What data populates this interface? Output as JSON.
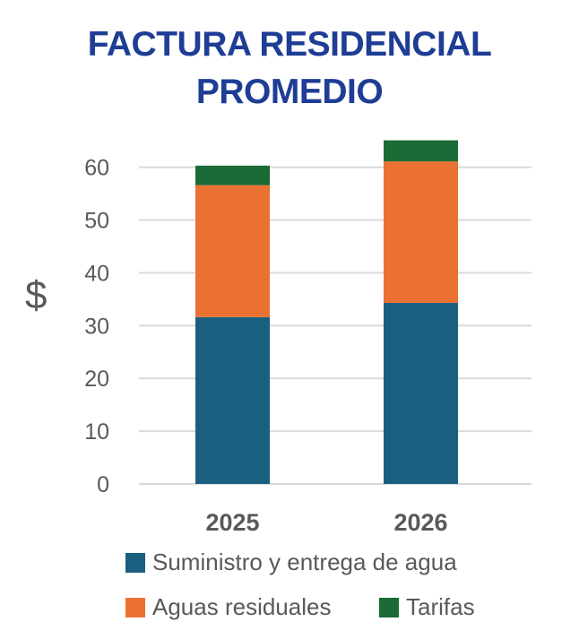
{
  "chart_data": {
    "type": "bar",
    "stacked": true,
    "title": [
      "FACTURA RESIDENCIAL",
      "PROMEDIO"
    ],
    "xlabel": "",
    "ylabel": "$",
    "ylim": [
      0,
      65
    ],
    "yticks": [
      0,
      10,
      20,
      30,
      40,
      50,
      60
    ],
    "grid": true,
    "legend_position": "bottom",
    "categories": [
      "2025",
      "2026"
    ],
    "series": [
      {
        "name": "Suministro y entrega de agua",
        "color": "#1a5f80",
        "values": [
          31.6,
          34.3
        ]
      },
      {
        "name": "Aguas residuales",
        "color": "#eb7133",
        "values": [
          25.0,
          26.8
        ]
      },
      {
        "name": "Tarifas",
        "color": "#1a6b35",
        "values": [
          3.7,
          4.0
        ]
      }
    ]
  }
}
